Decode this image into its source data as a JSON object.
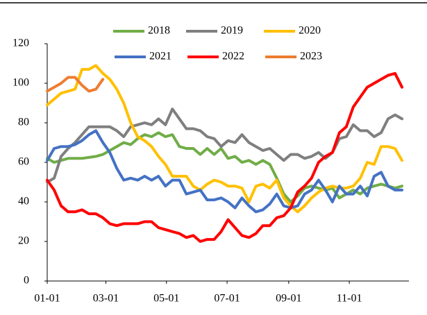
{
  "chart_data": {
    "type": "line",
    "x": [
      "01-01",
      "01-08",
      "01-15",
      "01-22",
      "01-29",
      "02-05",
      "02-12",
      "02-19",
      "02-26",
      "03-05",
      "03-12",
      "03-19",
      "03-26",
      "04-02",
      "04-09",
      "04-16",
      "04-23",
      "04-30",
      "05-07",
      "05-14",
      "05-21",
      "05-28",
      "06-04",
      "06-11",
      "06-18",
      "06-25",
      "07-02",
      "07-09",
      "07-16",
      "07-23",
      "07-30",
      "08-06",
      "08-13",
      "08-20",
      "08-27",
      "09-03",
      "09-10",
      "09-17",
      "09-24",
      "10-01",
      "10-08",
      "10-15",
      "10-22",
      "10-29",
      "11-05",
      "11-12",
      "11-19",
      "11-26",
      "12-03",
      "12-10",
      "12-17",
      "12-24"
    ],
    "series": [
      {
        "name": "2018",
        "color": "#70ad47",
        "values": [
          62,
          60,
          61,
          62,
          62,
          62,
          62.5,
          63,
          64,
          66,
          68,
          70,
          69,
          72,
          74,
          73,
          75,
          73,
          74,
          68,
          67,
          67,
          64,
          67,
          64,
          67,
          62,
          63,
          60,
          61,
          59,
          61,
          59,
          52,
          44,
          40,
          43,
          47,
          48,
          47,
          46,
          47,
          42,
          44,
          46,
          44,
          47,
          48,
          49,
          48,
          47,
          48
        ]
      },
      {
        "name": "2019",
        "color": "#7f7f7f",
        "values": [
          50,
          52,
          63,
          67,
          70,
          74,
          78,
          78,
          78,
          78,
          76,
          73,
          78,
          79,
          80,
          79,
          82,
          79,
          87,
          82,
          77,
          77,
          76,
          73,
          72,
          68,
          71,
          70,
          74,
          70,
          68,
          66,
          67,
          64,
          61,
          64,
          64,
          62,
          63,
          65,
          62,
          65,
          72,
          73,
          79,
          76,
          76,
          73,
          75,
          82,
          84,
          82
        ]
      },
      {
        "name": "2020",
        "color": "#ffc000",
        "values": [
          89,
          92,
          95,
          96,
          97,
          107,
          107,
          109,
          105,
          102,
          97,
          90,
          80,
          73,
          71,
          68,
          63,
          59,
          53,
          53,
          53,
          48,
          46,
          49,
          51,
          50,
          48,
          48,
          47,
          40,
          48,
          49,
          47,
          51,
          42,
          38,
          35,
          38,
          42,
          45,
          47,
          48,
          47,
          47,
          48,
          52,
          60,
          59,
          68,
          68,
          67,
          61
        ]
      },
      {
        "name": "2021",
        "color": "#4472c4",
        "values": [
          61,
          67,
          68,
          68,
          69,
          71,
          74,
          76,
          70,
          65,
          57,
          51,
          52,
          51,
          53,
          51,
          53,
          48,
          51,
          51,
          44,
          45,
          46,
          41,
          41,
          42,
          40,
          37,
          42,
          38,
          35,
          36,
          39,
          44,
          38,
          37,
          38,
          44,
          46,
          51,
          46,
          40,
          48,
          44,
          44,
          48,
          43,
          53,
          55,
          48,
          46,
          46
        ]
      },
      {
        "name": "2022",
        "color": "#ff0000",
        "values": [
          51,
          46,
          38,
          35,
          35,
          36,
          34,
          34,
          32,
          29,
          28,
          29,
          29,
          29,
          30,
          30,
          27,
          26,
          25,
          24,
          22,
          23,
          20,
          21,
          21,
          25,
          31,
          27,
          23,
          22,
          24,
          28,
          28,
          32,
          33,
          37,
          45,
          48,
          52,
          60,
          63,
          65,
          75,
          78,
          88,
          93,
          98,
          100,
          102,
          104,
          105,
          98
        ]
      },
      {
        "name": "2023",
        "color": "#ed7d31",
        "values": [
          96,
          98,
          100,
          103,
          103,
          99,
          96,
          97,
          102,
          null,
          null,
          null,
          null,
          null,
          null,
          null,
          null,
          null,
          null,
          null,
          null,
          null,
          null,
          null,
          null,
          null,
          null,
          null,
          null,
          null,
          null,
          null,
          null,
          null,
          null,
          null,
          null,
          null,
          null,
          null,
          null,
          null,
          null,
          null,
          null,
          null,
          null,
          null,
          null,
          null,
          null,
          null
        ]
      }
    ],
    "xlim": [
      "01-01",
      "12-31"
    ],
    "xticks": [
      "01-01",
      "03-01",
      "05-01",
      "07-01",
      "09-01",
      "11-01"
    ],
    "ylim": [
      0,
      120
    ],
    "yticks": [
      0,
      20,
      40,
      60,
      80,
      100,
      120
    ],
    "grid": false
  }
}
